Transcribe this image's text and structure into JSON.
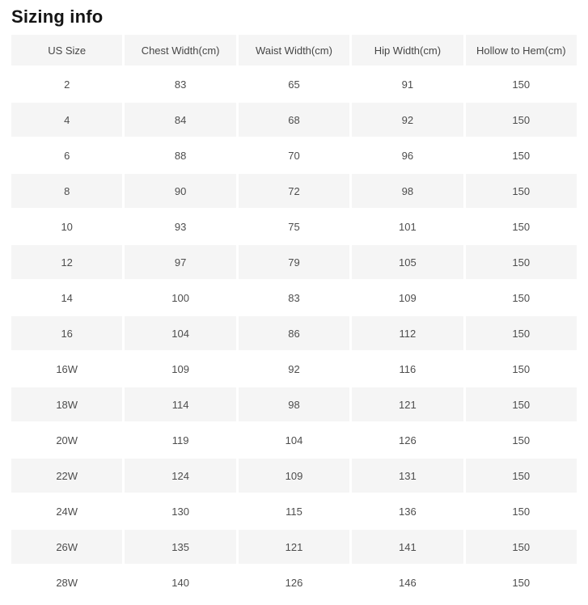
{
  "page": {
    "title": "Sizing info"
  },
  "table": {
    "columns": [
      "US Size",
      "Chest Width(cm)",
      "Waist Width(cm)",
      "Hip Width(cm)",
      "Hollow to Hem(cm)"
    ],
    "rows": [
      [
        "2",
        "83",
        "65",
        "91",
        "150"
      ],
      [
        "4",
        "84",
        "68",
        "92",
        "150"
      ],
      [
        "6",
        "88",
        "70",
        "96",
        "150"
      ],
      [
        "8",
        "90",
        "72",
        "98",
        "150"
      ],
      [
        "10",
        "93",
        "75",
        "101",
        "150"
      ],
      [
        "12",
        "97",
        "79",
        "105",
        "150"
      ],
      [
        "14",
        "100",
        "83",
        "109",
        "150"
      ],
      [
        "16",
        "104",
        "86",
        "112",
        "150"
      ],
      [
        "16W",
        "109",
        "92",
        "116",
        "150"
      ],
      [
        "18W",
        "114",
        "98",
        "121",
        "150"
      ],
      [
        "20W",
        "119",
        "104",
        "126",
        "150"
      ],
      [
        "22W",
        "124",
        "109",
        "131",
        "150"
      ],
      [
        "24W",
        "130",
        "115",
        "136",
        "150"
      ],
      [
        "26W",
        "135",
        "121",
        "141",
        "150"
      ],
      [
        "28W",
        "140",
        "126",
        "146",
        "150"
      ]
    ]
  },
  "colors": {
    "page_bg": "#ffffff",
    "title_text": "#141414",
    "header_bg": "#f5f5f5",
    "header_text": "#464646",
    "row_alt_bg": "#f5f5f5",
    "body_text": "#4d4d4d"
  }
}
